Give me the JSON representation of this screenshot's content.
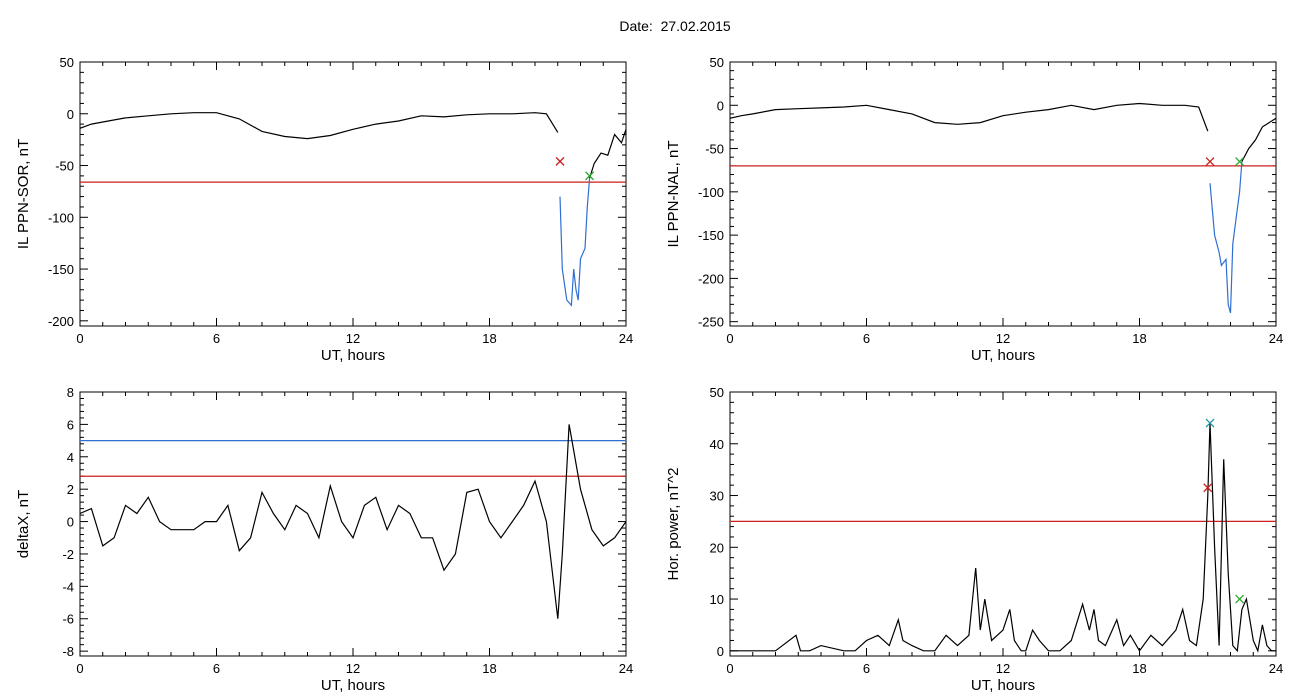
{
  "page": {
    "title": "Date:  27.02.2015"
  },
  "colors": {
    "frame": "#000000",
    "trace": "#000000",
    "threshold_red": "#cc1f1f",
    "threshold_blue": "#2f6fd1",
    "highlight_blue": "#2f6fd1",
    "marker_red": "#cc1f1f",
    "marker_green": "#2ea82e",
    "marker_teal": "#1b9aa8"
  },
  "chart_data": [
    {
      "id": "panel1",
      "type": "line",
      "xlabel": "UT, hours",
      "ylabel": "IL PPN-SOR, nT",
      "xlim": [
        0,
        24
      ],
      "ylim": [
        -205,
        50
      ],
      "xticks": [
        0,
        6,
        12,
        18,
        24
      ],
      "yticks": [
        50,
        0,
        -50,
        -100,
        -150,
        -200
      ],
      "series": [
        {
          "color": "#000000",
          "x": [
            0,
            0.5,
            1,
            2,
            3,
            4,
            5,
            6,
            7,
            8,
            9,
            10,
            11,
            12,
            13,
            14,
            15,
            16,
            17,
            18,
            19,
            20,
            20.5,
            21
          ],
          "y": [
            -14,
            -10,
            -8,
            -4,
            -2,
            0,
            1,
            1,
            -5,
            -17,
            -22,
            -24,
            -21,
            -15,
            -10,
            -7,
            -2,
            -3,
            -1,
            0,
            0,
            1,
            0,
            -18
          ]
        },
        {
          "color": "#2f6fd1",
          "x": [
            21.1,
            21.2,
            21.4,
            21.6,
            21.7,
            21.8,
            21.9,
            22.0,
            22.2,
            22.3,
            22.4
          ],
          "y": [
            -80,
            -150,
            -180,
            -185,
            -150,
            -170,
            -180,
            -140,
            -130,
            -90,
            -62
          ]
        },
        {
          "color": "#000000",
          "x": [
            22.4,
            22.6,
            22.9,
            23.2,
            23.5,
            23.8,
            24
          ],
          "y": [
            -62,
            -48,
            -38,
            -40,
            -20,
            -28,
            -15
          ]
        }
      ],
      "hlines": [
        {
          "y": -66,
          "color": "#cc1f1f"
        }
      ],
      "markers": [
        {
          "x": 21.1,
          "y": -46,
          "color": "#cc1f1f"
        },
        {
          "x": 22.4,
          "y": -60,
          "color": "#2ea82e"
        }
      ]
    },
    {
      "id": "panel2",
      "type": "line",
      "xlabel": "UT, hours",
      "ylabel": "IL PPN-NAL, nT",
      "xlim": [
        0,
        24
      ],
      "ylim": [
        -255,
        50
      ],
      "xticks": [
        0,
        6,
        12,
        18,
        24
      ],
      "yticks": [
        50,
        0,
        -50,
        -100,
        -150,
        -200,
        -250
      ],
      "series": [
        {
          "color": "#000000",
          "x": [
            0,
            0.5,
            1,
            2,
            3,
            4,
            5,
            6,
            7,
            8,
            9,
            10,
            11,
            12,
            13,
            14,
            15,
            16,
            17,
            18,
            19,
            20,
            20.6,
            21
          ],
          "y": [
            -15,
            -12,
            -10,
            -5,
            -4,
            -3,
            -2,
            0,
            -5,
            -10,
            -20,
            -22,
            -20,
            -12,
            -8,
            -5,
            0,
            -5,
            0,
            2,
            0,
            0,
            -2,
            -30
          ]
        },
        {
          "color": "#2f6fd1",
          "x": [
            21.1,
            21.3,
            21.5,
            21.6,
            21.8,
            21.9,
            22.0,
            22.1,
            22.3,
            22.4,
            22.5
          ],
          "y": [
            -90,
            -150,
            -170,
            -185,
            -178,
            -230,
            -240,
            -160,
            -120,
            -100,
            -65
          ]
        },
        {
          "color": "#000000",
          "x": [
            22.5,
            22.8,
            23.1,
            23.4,
            23.7,
            24
          ],
          "y": [
            -65,
            -50,
            -40,
            -25,
            -20,
            -15
          ]
        }
      ],
      "hlines": [
        {
          "y": -70,
          "color": "#cc1f1f"
        }
      ],
      "markers": [
        {
          "x": 21.1,
          "y": -65,
          "color": "#cc1f1f"
        },
        {
          "x": 22.4,
          "y": -65,
          "color": "#2ea82e"
        }
      ]
    },
    {
      "id": "panel3",
      "type": "line",
      "xlabel": "UT, hours",
      "ylabel": "deltaX, nT",
      "xlim": [
        0,
        24
      ],
      "ylim": [
        -8.3,
        8
      ],
      "xticks": [
        0,
        6,
        12,
        18,
        24
      ],
      "yticks": [
        8,
        6,
        4,
        2,
        0,
        -2,
        -4,
        -6,
        -8
      ],
      "series": [
        {
          "color": "#000000",
          "x": [
            0,
            0.5,
            1,
            1.5,
            2,
            2.5,
            3,
            3.5,
            4,
            5,
            5.5,
            6,
            6.5,
            7,
            7.5,
            8,
            8.5,
            9,
            9.5,
            10,
            10.5,
            11,
            11.5,
            12,
            12.5,
            13,
            13.5,
            14,
            14.5,
            15,
            15.5,
            16,
            16.5,
            17,
            17.5,
            18,
            18.5,
            19,
            19.5,
            20,
            20.5,
            21,
            21.2,
            21.5,
            22,
            22.5,
            23,
            23.5,
            24
          ],
          "y": [
            0.5,
            0.8,
            -1.5,
            -1.0,
            1.0,
            0.5,
            1.5,
            0.0,
            -0.5,
            -0.5,
            0.0,
            0.0,
            1.0,
            -1.8,
            -1.0,
            1.8,
            0.5,
            -0.5,
            1.0,
            0.5,
            -1.0,
            2.2,
            0.0,
            -1.0,
            1.0,
            1.5,
            -0.5,
            1.0,
            0.5,
            -1.0,
            -1.0,
            -3.0,
            -2.0,
            1.8,
            2.0,
            0.0,
            -1.0,
            0.0,
            1.0,
            2.5,
            0.0,
            -6.0,
            -2.0,
            6.0,
            2.0,
            -0.5,
            -1.5,
            -1.0,
            0.0
          ]
        }
      ],
      "hlines": [
        {
          "y": 5.0,
          "color": "#2f6fd1"
        },
        {
          "y": 2.8,
          "color": "#cc1f1f"
        }
      ],
      "markers": []
    },
    {
      "id": "panel4",
      "type": "line",
      "xlabel": "UT, hours",
      "ylabel": "Hor. power, nT^2",
      "xlim": [
        0,
        24
      ],
      "ylim": [
        -1,
        50
      ],
      "xticks": [
        0,
        6,
        12,
        18,
        24
      ],
      "yticks": [
        50,
        40,
        30,
        20,
        10,
        0
      ],
      "series": [
        {
          "color": "#000000",
          "x": [
            0,
            1,
            2,
            2.9,
            3.1,
            3.5,
            4,
            5,
            5.5,
            6,
            6.5,
            7,
            7.4,
            7.6,
            8,
            8.5,
            9,
            9.5,
            10,
            10.5,
            10.8,
            11.0,
            11.2,
            11.5,
            12,
            12.3,
            12.5,
            12.8,
            13.0,
            13.3,
            13.6,
            14,
            14.5,
            15,
            15.5,
            15.8,
            16.0,
            16.2,
            16.5,
            17,
            17.3,
            17.6,
            18,
            18.5,
            19,
            19.6,
            19.9,
            20.2,
            20.5,
            20.8,
            21.0,
            21.1,
            21.3,
            21.5,
            21.7,
            21.9,
            22.1,
            22.3,
            22.5,
            22.7,
            23,
            23.2,
            23.4,
            23.6,
            23.8,
            24
          ],
          "y": [
            0,
            0,
            0,
            3,
            0,
            0,
            1,
            0,
            0,
            2,
            3,
            1,
            6,
            2,
            1,
            0,
            0,
            3,
            1,
            3,
            16,
            4,
            10,
            2,
            4,
            8,
            2,
            0,
            0,
            4,
            2,
            0,
            0,
            2,
            9,
            4,
            8,
            2,
            1,
            6,
            1,
            3,
            0,
            3,
            1,
            4,
            8,
            2,
            1,
            10,
            30,
            44,
            20,
            1,
            37,
            15,
            1,
            0,
            8,
            10,
            2,
            0,
            5,
            1,
            0,
            0
          ]
        }
      ],
      "hlines": [
        {
          "y": 25,
          "color": "#cc1f1f"
        }
      ],
      "markers": [
        {
          "x": 21.0,
          "y": 31.5,
          "color": "#cc1f1f"
        },
        {
          "x": 21.1,
          "y": 44,
          "color": "#1b9aa8"
        },
        {
          "x": 22.4,
          "y": 10,
          "color": "#2ea82e"
        }
      ]
    }
  ]
}
